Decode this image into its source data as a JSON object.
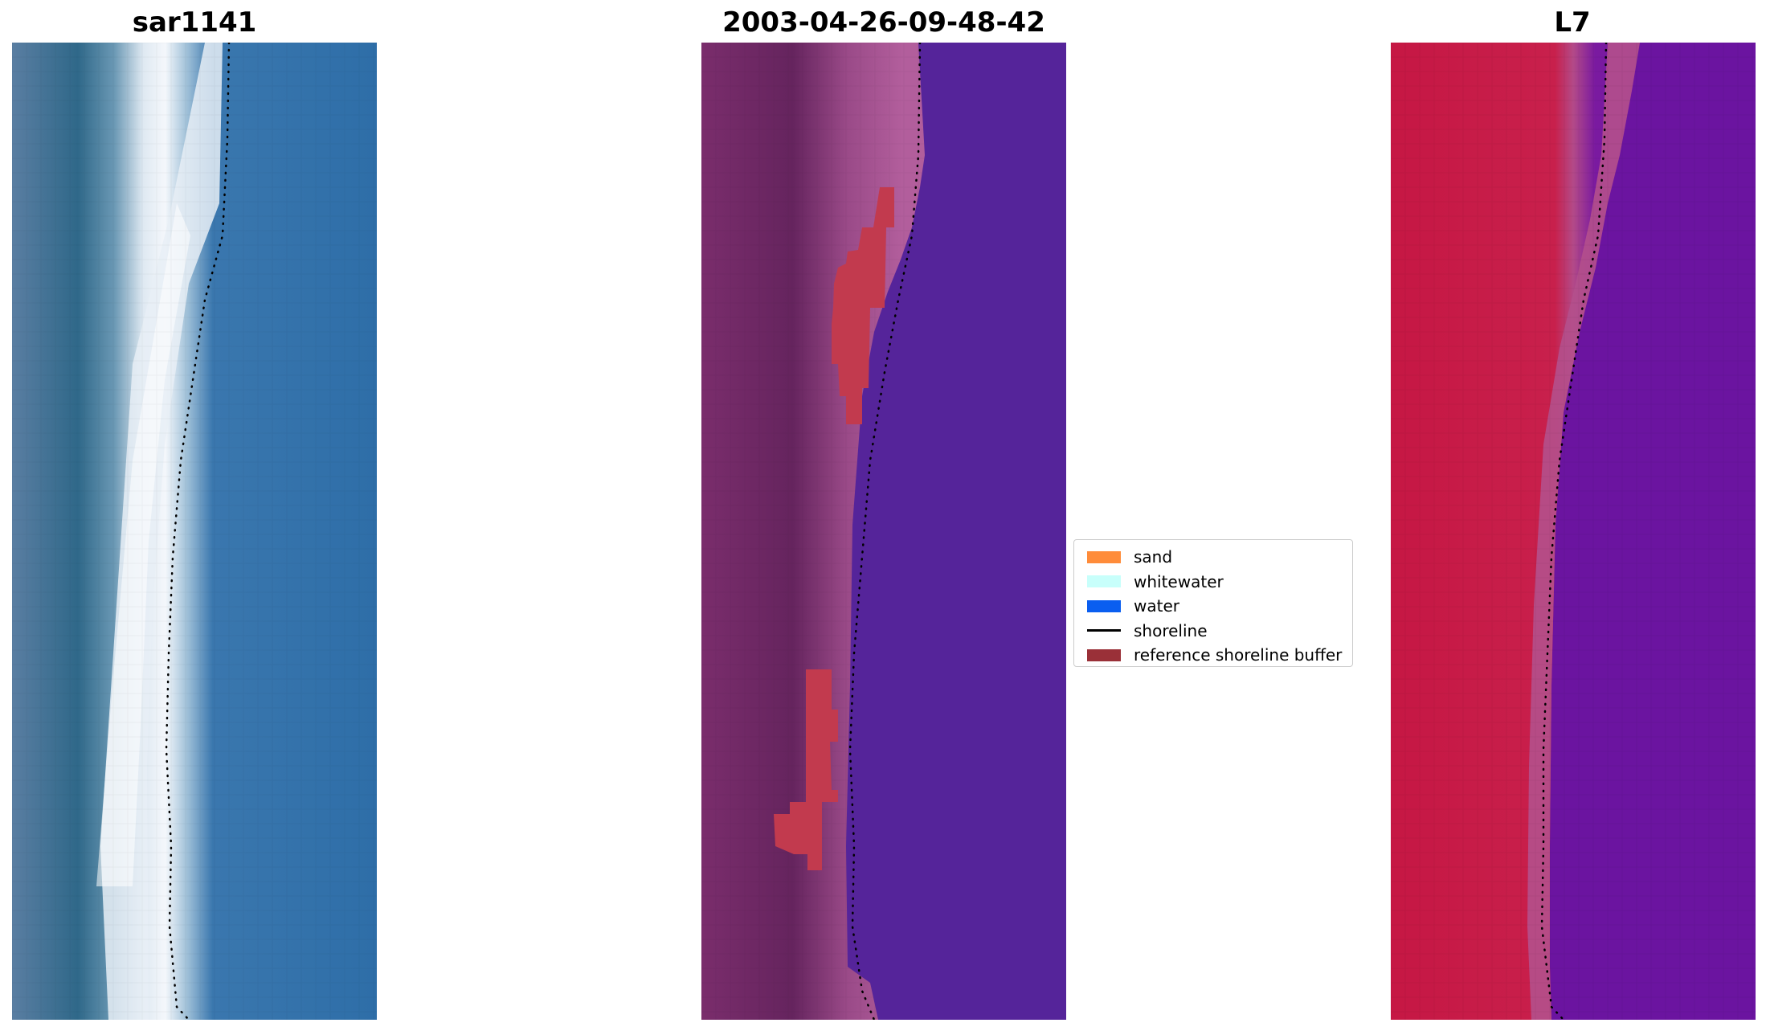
{
  "panels": [
    {
      "title": "sar1141",
      "image": "rgb-true-color"
    },
    {
      "title": "2003-04-26-09-48-42",
      "image": "classified-with-buffer"
    },
    {
      "title": "L7",
      "image": "mndwi-index"
    }
  ],
  "legend": {
    "items": [
      {
        "label": "sand",
        "color": "#ff8c3a",
        "kind": "patch"
      },
      {
        "label": "whitewater",
        "color": "#c8fffb",
        "kind": "patch"
      },
      {
        "label": "water",
        "color": "#0a5ef0",
        "kind": "patch"
      },
      {
        "label": "shoreline",
        "color": "#000000",
        "kind": "line"
      },
      {
        "label": "reference shoreline buffer",
        "color": "#9a3038",
        "kind": "patch"
      }
    ]
  },
  "colors": {
    "rgb_sand": "#f2f4f8",
    "rgb_land": "#3e6d92",
    "rgb_water": "#2f6fa8",
    "class_land": "#6e2a64",
    "class_beach": "#b05a98",
    "class_water": "#55249a",
    "class_buffer": "#c23a4e",
    "index_land": "#c81a46",
    "index_water": "#6a14a0",
    "index_edge": "#b4508c"
  }
}
